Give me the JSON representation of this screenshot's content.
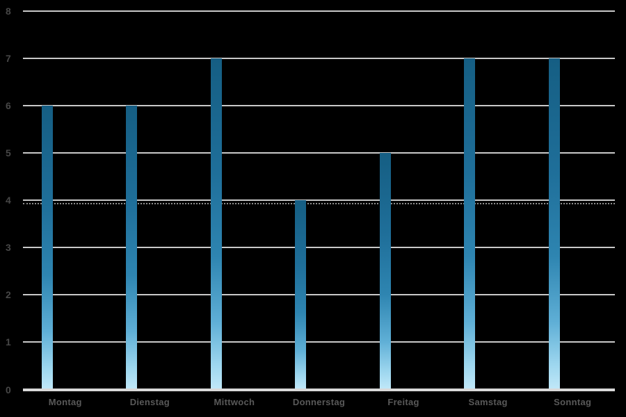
{
  "chart_data": {
    "type": "bar",
    "categories": [
      "Montag",
      "Dienstag",
      "Mittwoch",
      "Donnerstag",
      "Freitag",
      "Samstag",
      "Sonntag"
    ],
    "values": [
      6,
      6,
      7,
      4,
      5,
      7,
      7
    ],
    "title": "",
    "xlabel": "",
    "ylabel": "",
    "ylim": [
      0,
      8
    ],
    "ytick_step": 1,
    "ytick_labels": [
      "0",
      "1",
      "2",
      "3",
      "4",
      "5",
      "6",
      "7",
      "8"
    ],
    "grid": true,
    "legend": false,
    "colors": {
      "background": "#000000",
      "gridline": "#c9c9c9",
      "axis_line": "#d9d9d9",
      "ytick_label": "#474747",
      "xtick_label": "#595959",
      "bar_gradient_top": "#155e83",
      "bar_gradient_mid": "#2e85b1",
      "bar_gradient_bottom": "#bfe7f8"
    },
    "annotations": [
      {
        "type": "dotted-line",
        "y": 3.94,
        "color": "#8f8f8f"
      }
    ]
  }
}
